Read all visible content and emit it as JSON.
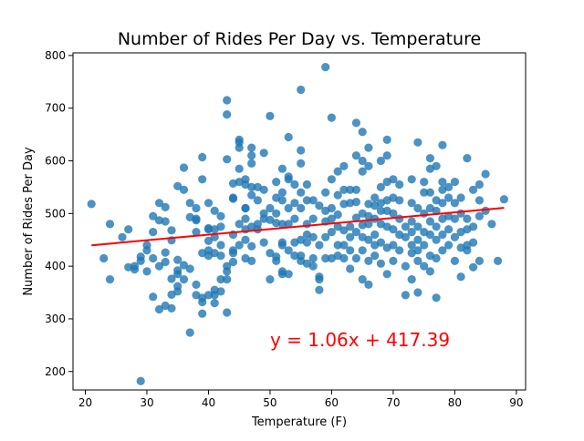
{
  "chart_data": {
    "type": "scatter",
    "title": "Number of Rides Per Day vs. Temperature",
    "xlabel": "Temperature (F)",
    "ylabel": "Number of Rides Per Day",
    "xlim": [
      18,
      91.5
    ],
    "ylim": [
      165,
      805
    ],
    "xticks": [
      "20",
      "30",
      "40",
      "50",
      "60",
      "70",
      "80",
      "90"
    ],
    "yticks": [
      "200",
      "300",
      "400",
      "500",
      "600",
      "700",
      "800"
    ],
    "grid": false,
    "point_color": "#1f77b4",
    "regression": {
      "equation": "y = 1.06x + 417.39",
      "slope": 1.06,
      "intercept": 417.39,
      "x_range": [
        21,
        88
      ],
      "color": "#ff0000",
      "annotation_at": [
        50,
        260
      ]
    },
    "points": [
      [
        21,
        518
      ],
      [
        23,
        415
      ],
      [
        24,
        375
      ],
      [
        24,
        480
      ],
      [
        26,
        455
      ],
      [
        27,
        470
      ],
      [
        27,
        398
      ],
      [
        28,
        394
      ],
      [
        28,
        400
      ],
      [
        29,
        182
      ],
      [
        29,
        418
      ],
      [
        29,
        410
      ],
      [
        30,
        390
      ],
      [
        30,
        440
      ],
      [
        30,
        430
      ],
      [
        31,
        342
      ],
      [
        31,
        495
      ],
      [
        31,
        465
      ],
      [
        31,
        415
      ],
      [
        32,
        520
      ],
      [
        32,
        487
      ],
      [
        32,
        400
      ],
      [
        32,
        318
      ],
      [
        33,
        426
      ],
      [
        33,
        408
      ],
      [
        33,
        485
      ],
      [
        33,
        325
      ],
      [
        33,
        512
      ],
      [
        34,
        320
      ],
      [
        34,
        346
      ],
      [
        34,
        376
      ],
      [
        34,
        468
      ],
      [
        34,
        449
      ],
      [
        35,
        385
      ],
      [
        35,
        362
      ],
      [
        35,
        352
      ],
      [
        35,
        392
      ],
      [
        35,
        412
      ],
      [
        35,
        552
      ],
      [
        36,
        545
      ],
      [
        36,
        587
      ],
      [
        36,
        375
      ],
      [
        36,
        402
      ],
      [
        37,
        395
      ],
      [
        37,
        493
      ],
      [
        37,
        274
      ],
      [
        37,
        520
      ],
      [
        38,
        490
      ],
      [
        38,
        487
      ],
      [
        38,
        510
      ],
      [
        38,
        465
      ],
      [
        38,
        365
      ],
      [
        38,
        345
      ],
      [
        39,
        340
      ],
      [
        39,
        310
      ],
      [
        39,
        332
      ],
      [
        39,
        425
      ],
      [
        39,
        565
      ],
      [
        39,
        607
      ],
      [
        40,
        520
      ],
      [
        40,
        472
      ],
      [
        40,
        420
      ],
      [
        40,
        470
      ],
      [
        40,
        448
      ],
      [
        40,
        430
      ],
      [
        40,
        345
      ],
      [
        41,
        505
      ],
      [
        41,
        425
      ],
      [
        41,
        470
      ],
      [
        41,
        455
      ],
      [
        41,
        355
      ],
      [
        41,
        345
      ],
      [
        41,
        330
      ],
      [
        42,
        440
      ],
      [
        42,
        420
      ],
      [
        42,
        352
      ],
      [
        42,
        375
      ],
      [
        42,
        475
      ],
      [
        42,
        495
      ],
      [
        43,
        715
      ],
      [
        43,
        688
      ],
      [
        43,
        603
      ],
      [
        43,
        400
      ],
      [
        43,
        390
      ],
      [
        43,
        375
      ],
      [
        43,
        312
      ],
      [
        44,
        530
      ],
      [
        44,
        460
      ],
      [
        44,
        430
      ],
      [
        44,
        425
      ],
      [
        44,
        408
      ],
      [
        44,
        528
      ],
      [
        44,
        557
      ],
      [
        45,
        560
      ],
      [
        45,
        585
      ],
      [
        45,
        625
      ],
      [
        45,
        640
      ],
      [
        45,
        635
      ],
      [
        45,
        480
      ],
      [
        45,
        440
      ],
      [
        46,
        510
      ],
      [
        46,
        470
      ],
      [
        46,
        565
      ],
      [
        46,
        555
      ],
      [
        46,
        510
      ],
      [
        46,
        490
      ],
      [
        46,
        450
      ],
      [
        46,
        415
      ],
      [
        47,
        625
      ],
      [
        47,
        610
      ],
      [
        47,
        595
      ],
      [
        47,
        550
      ],
      [
        47,
        535
      ],
      [
        47,
        475
      ],
      [
        47,
        438
      ],
      [
        47,
        410
      ],
      [
        48,
        550
      ],
      [
        48,
        525
      ],
      [
        48,
        480
      ],
      [
        48,
        470
      ],
      [
        49,
        615
      ],
      [
        49,
        545
      ],
      [
        49,
        500
      ],
      [
        49,
        490
      ],
      [
        49,
        445
      ],
      [
        50,
        685
      ],
      [
        50,
        510
      ],
      [
        50,
        488
      ],
      [
        50,
        425
      ],
      [
        50,
        375
      ],
      [
        51,
        560
      ],
      [
        51,
        530
      ],
      [
        51,
        500
      ],
      [
        51,
        482
      ],
      [
        51,
        418
      ],
      [
        51,
        410
      ],
      [
        52,
        585
      ],
      [
        52,
        540
      ],
      [
        52,
        525
      ],
      [
        52,
        480
      ],
      [
        52,
        445
      ],
      [
        52,
        440
      ],
      [
        52,
        390
      ],
      [
        52,
        385
      ],
      [
        53,
        645
      ],
      [
        53,
        570
      ],
      [
        53,
        565
      ],
      [
        53,
        510
      ],
      [
        53,
        480
      ],
      [
        53,
        430
      ],
      [
        53,
        385
      ],
      [
        54,
        555
      ],
      [
        54,
        520
      ],
      [
        54,
        490
      ],
      [
        54,
        445
      ],
      [
        54,
        420
      ],
      [
        55,
        735
      ],
      [
        55,
        620
      ],
      [
        55,
        595
      ],
      [
        55,
        540
      ],
      [
        55,
        510
      ],
      [
        55,
        450
      ],
      [
        55,
        420
      ],
      [
        55,
        410
      ],
      [
        56,
        555
      ],
      [
        56,
        525
      ],
      [
        56,
        480
      ],
      [
        56,
        460
      ],
      [
        56,
        445
      ],
      [
        56,
        405
      ],
      [
        57,
        525
      ],
      [
        57,
        490
      ],
      [
        57,
        455
      ],
      [
        57,
        415
      ],
      [
        57,
        400
      ],
      [
        58,
        440
      ],
      [
        58,
        380
      ],
      [
        58,
        355
      ],
      [
        58,
        515
      ],
      [
        58,
        375
      ],
      [
        59,
        778
      ],
      [
        59,
        540
      ],
      [
        59,
        505
      ],
      [
        59,
        485
      ],
      [
        59,
        455
      ],
      [
        59,
        415
      ],
      [
        60,
        682
      ],
      [
        60,
        565
      ],
      [
        60,
        510
      ],
      [
        60,
        490
      ],
      [
        60,
        465
      ],
      [
        60,
        415
      ],
      [
        61,
        580
      ],
      [
        61,
        535
      ],
      [
        61,
        498
      ],
      [
        61,
        475
      ],
      [
        61,
        440
      ],
      [
        61,
        420
      ],
      [
        62,
        590
      ],
      [
        62,
        545
      ],
      [
        62,
        518
      ],
      [
        62,
        468
      ],
      [
        62,
        440
      ],
      [
        62,
        415
      ],
      [
        63,
        545
      ],
      [
        63,
        520
      ],
      [
        63,
        475
      ],
      [
        63,
        455
      ],
      [
        63,
        430
      ],
      [
        63,
        395
      ],
      [
        64,
        672
      ],
      [
        64,
        610
      ],
      [
        64,
        545
      ],
      [
        64,
        522
      ],
      [
        64,
        492
      ],
      [
        64,
        465
      ],
      [
        64,
        415
      ],
      [
        65,
        655
      ],
      [
        65,
        600
      ],
      [
        65,
        580
      ],
      [
        65,
        500
      ],
      [
        65,
        478
      ],
      [
        65,
        455
      ],
      [
        65,
        430
      ],
      [
        65,
        375
      ],
      [
        66,
        625
      ],
      [
        66,
        590
      ],
      [
        66,
        518
      ],
      [
        66,
        495
      ],
      [
        66,
        480
      ],
      [
        66,
        450
      ],
      [
        66,
        410
      ],
      [
        66,
        365
      ],
      [
        67,
        530
      ],
      [
        67,
        515
      ],
      [
        67,
        490
      ],
      [
        67,
        460
      ],
      [
        67,
        440
      ],
      [
        67,
        420
      ],
      [
        68,
        600
      ],
      [
        68,
        550
      ],
      [
        68,
        520
      ],
      [
        68,
        505
      ],
      [
        68,
        480
      ],
      [
        68,
        445
      ],
      [
        68,
        405
      ],
      [
        69,
        640
      ],
      [
        69,
        610
      ],
      [
        69,
        560
      ],
      [
        69,
        525
      ],
      [
        69,
        505
      ],
      [
        69,
        475
      ],
      [
        69,
        435
      ],
      [
        69,
        385
      ],
      [
        70,
        565
      ],
      [
        70,
        530
      ],
      [
        70,
        500
      ],
      [
        70,
        470
      ],
      [
        70,
        440
      ],
      [
        70,
        410
      ],
      [
        71,
        555
      ],
      [
        71,
        525
      ],
      [
        71,
        490
      ],
      [
        71,
        460
      ],
      [
        71,
        430
      ],
      [
        72,
        475
      ],
      [
        72,
        455
      ],
      [
        72,
        400
      ],
      [
        72,
        345
      ],
      [
        73,
        565
      ],
      [
        73,
        520
      ],
      [
        73,
        485
      ],
      [
        73,
        465
      ],
      [
        73,
        440
      ],
      [
        73,
        425
      ],
      [
        73,
        375
      ],
      [
        74,
        635
      ],
      [
        74,
        510
      ],
      [
        74,
        475
      ],
      [
        74,
        450
      ],
      [
        74,
        430
      ],
      [
        74,
        410
      ],
      [
        74,
        350
      ],
      [
        75,
        560
      ],
      [
        75,
        540
      ],
      [
        75,
        500
      ],
      [
        75,
        465
      ],
      [
        75,
        440
      ],
      [
        75,
        400
      ],
      [
        76,
        605
      ],
      [
        76,
        585
      ],
      [
        76,
        540
      ],
      [
        76,
        510
      ],
      [
        76,
        485
      ],
      [
        76,
        460
      ],
      [
        76,
        420
      ],
      [
        76,
        390
      ],
      [
        77,
        590
      ],
      [
        77,
        525
      ],
      [
        77,
        505
      ],
      [
        77,
        475
      ],
      [
        77,
        450
      ],
      [
        77,
        415
      ],
      [
        77,
        340
      ],
      [
        78,
        630
      ],
      [
        78,
        560
      ],
      [
        78,
        545
      ],
      [
        78,
        520
      ],
      [
        78,
        490
      ],
      [
        78,
        460
      ],
      [
        78,
        430
      ],
      [
        79,
        550
      ],
      [
        79,
        530
      ],
      [
        79,
        495
      ],
      [
        79,
        470
      ],
      [
        79,
        440
      ],
      [
        80,
        560
      ],
      [
        80,
        520
      ],
      [
        80,
        490
      ],
      [
        80,
        455
      ],
      [
        80,
        410
      ],
      [
        81,
        530
      ],
      [
        81,
        500
      ],
      [
        81,
        465
      ],
      [
        81,
        435
      ],
      [
        81,
        380
      ],
      [
        82,
        605
      ],
      [
        82,
        490
      ],
      [
        82,
        470
      ],
      [
        82,
        440
      ],
      [
        82,
        430
      ],
      [
        83,
        545
      ],
      [
        83,
        475
      ],
      [
        83,
        445
      ],
      [
        83,
        398
      ],
      [
        84,
        555
      ],
      [
        84,
        525
      ],
      [
        84,
        495
      ],
      [
        84,
        410
      ],
      [
        85,
        575
      ],
      [
        85,
        505
      ],
      [
        86,
        480
      ],
      [
        87,
        410
      ],
      [
        88,
        527
      ]
    ]
  }
}
